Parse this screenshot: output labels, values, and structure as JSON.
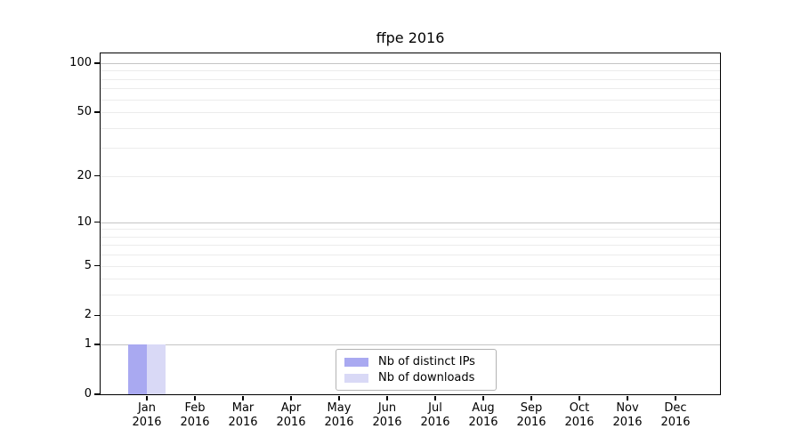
{
  "chart_data": {
    "type": "bar",
    "title": "ffpe 2016",
    "xlabel": "",
    "ylabel": "",
    "yscale": "log1p",
    "ylim": [
      0,
      115
    ],
    "grid": "horizontal",
    "legend_position": "lower-center-inside",
    "categories": [
      "Jan",
      "Feb",
      "Mar",
      "Apr",
      "May",
      "Jun",
      "Jul",
      "Aug",
      "Sep",
      "Oct",
      "Nov",
      "Dec"
    ],
    "category_year": "2016",
    "series": [
      {
        "name": "Nb of distinct IPs",
        "color": "#a9a9f1",
        "values": [
          1,
          0,
          0,
          0,
          0,
          0,
          0,
          0,
          0,
          0,
          0,
          0
        ]
      },
      {
        "name": "Nb of downloads",
        "color": "#d9d9f6",
        "values": [
          1,
          0,
          0,
          0,
          0,
          0,
          0,
          0,
          0,
          0,
          0,
          0
        ]
      }
    ],
    "yticks": [
      0,
      1,
      2,
      5,
      10,
      20,
      50,
      100
    ],
    "ytick_labels": [
      "0",
      "1",
      "2",
      "5",
      "10",
      "20",
      "50",
      "100"
    ],
    "strong_gridlines": [
      1,
      10,
      100
    ],
    "light_gridlines": [
      2,
      3,
      4,
      5,
      6,
      7,
      8,
      9,
      20,
      30,
      40,
      50,
      60,
      70,
      80,
      90
    ],
    "colors": {
      "axis": "#000000",
      "text": "#000000",
      "grid_major": "#c4c4c4",
      "grid_minor": "#ececec",
      "legend_border": "#b3b3b3",
      "background": "#ffffff"
    }
  }
}
